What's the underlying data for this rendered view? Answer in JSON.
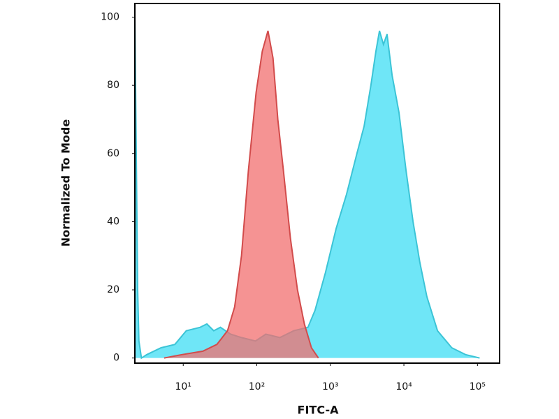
{
  "chart_data": {
    "type": "area",
    "xlabel": "FITC-A",
    "ylabel": "Normalized To Mode",
    "xscale": "log",
    "xlim": [
      2.2,
      200000
    ],
    "ylim": [
      -1.5,
      104
    ],
    "xticks": [
      {
        "value": 10,
        "label": "10¹"
      },
      {
        "value": 100,
        "label": "10²"
      },
      {
        "value": 1000,
        "label": "10³"
      },
      {
        "value": 10000,
        "label": "10⁴"
      },
      {
        "value": 100000,
        "label": "10⁵"
      }
    ],
    "yticks": [
      0,
      20,
      40,
      60,
      80,
      100
    ],
    "series": [
      {
        "color": "#3cc4d6",
        "fill": "#6fe6f7",
        "x": [
          2.2,
          2.4,
          2.5,
          2.7,
          3.2,
          5,
          7.7,
          11,
          17,
          21,
          26,
          32,
          44,
          62,
          96,
          133,
          206,
          318,
          496,
          620,
          857,
          1200,
          1660,
          2300,
          2880,
          3560,
          4170,
          4660,
          5270,
          5900,
          6900,
          8580,
          10700,
          13300,
          16500,
          20500,
          28600,
          44700,
          69000,
          107000
        ],
        "values": [
          100,
          20,
          5,
          0,
          1,
          3,
          4,
          8,
          9,
          10,
          8,
          9,
          7,
          6,
          5,
          7,
          6,
          8,
          9,
          14,
          25,
          38,
          48,
          60,
          68,
          80,
          90,
          96,
          92,
          95,
          83,
          72,
          55,
          40,
          28,
          18,
          8,
          3,
          1,
          0
        ]
      },
      {
        "color": "#d24b4b",
        "fill": "#f26f6f",
        "x": [
          5.5,
          9.6,
          18.5,
          28.7,
          40,
          50,
          62,
          77,
          98,
          119,
          142,
          166,
          193,
          230,
          287,
          357,
          444,
          553,
          689
        ],
        "values": [
          0,
          1,
          2,
          4,
          8,
          15,
          30,
          55,
          78,
          90,
          96,
          88,
          70,
          55,
          35,
          20,
          10,
          3,
          0
        ]
      }
    ]
  }
}
